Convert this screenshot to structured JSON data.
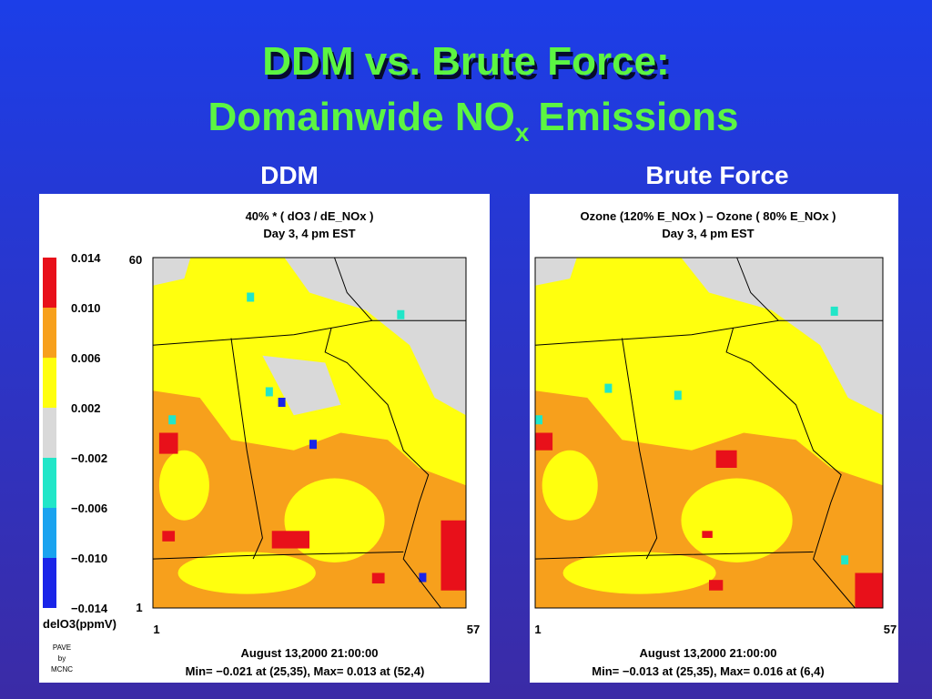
{
  "header": {
    "title_line1": "DDM vs. Brute Force:",
    "title_line2_main": "Domainwide NO",
    "title_line2_sub": "x",
    "title_line2_end": "Emissions"
  },
  "panels": [
    {
      "label": "DDM",
      "plot_title": [
        "40% * ( dO3 / dE_NOx )",
        "Day 3, 4 pm EST"
      ],
      "legend_ticks": [
        "0.014",
        "0.010",
        "0.006",
        "0.002",
        "−0.002",
        "−0.006",
        "−0.010",
        "−0.014"
      ],
      "legend_unit": "delO3(ppmV)",
      "y_axis": [
        "60",
        "1"
      ],
      "x_axis": [
        "1",
        "57"
      ],
      "footer": [
        "August 13,2000 21:00:00",
        "Min=  −0.021 at (25,35), Max=   0.013 at (52,4)"
      ],
      "credit": [
        "PAVE",
        "by",
        "MCNC"
      ]
    },
    {
      "label": "Brute Force",
      "plot_title": [
        "Ozone (120% E_NOx ) – Ozone ( 80% E_NOx )",
        "Day 3, 4 pm EST"
      ],
      "x_axis": [
        "1",
        "57"
      ],
      "footer": [
        "August 13,2000 21:00:00",
        "Min=  −0.013 at (25,35), Max=   0.016 at (6,4)"
      ]
    }
  ]
}
